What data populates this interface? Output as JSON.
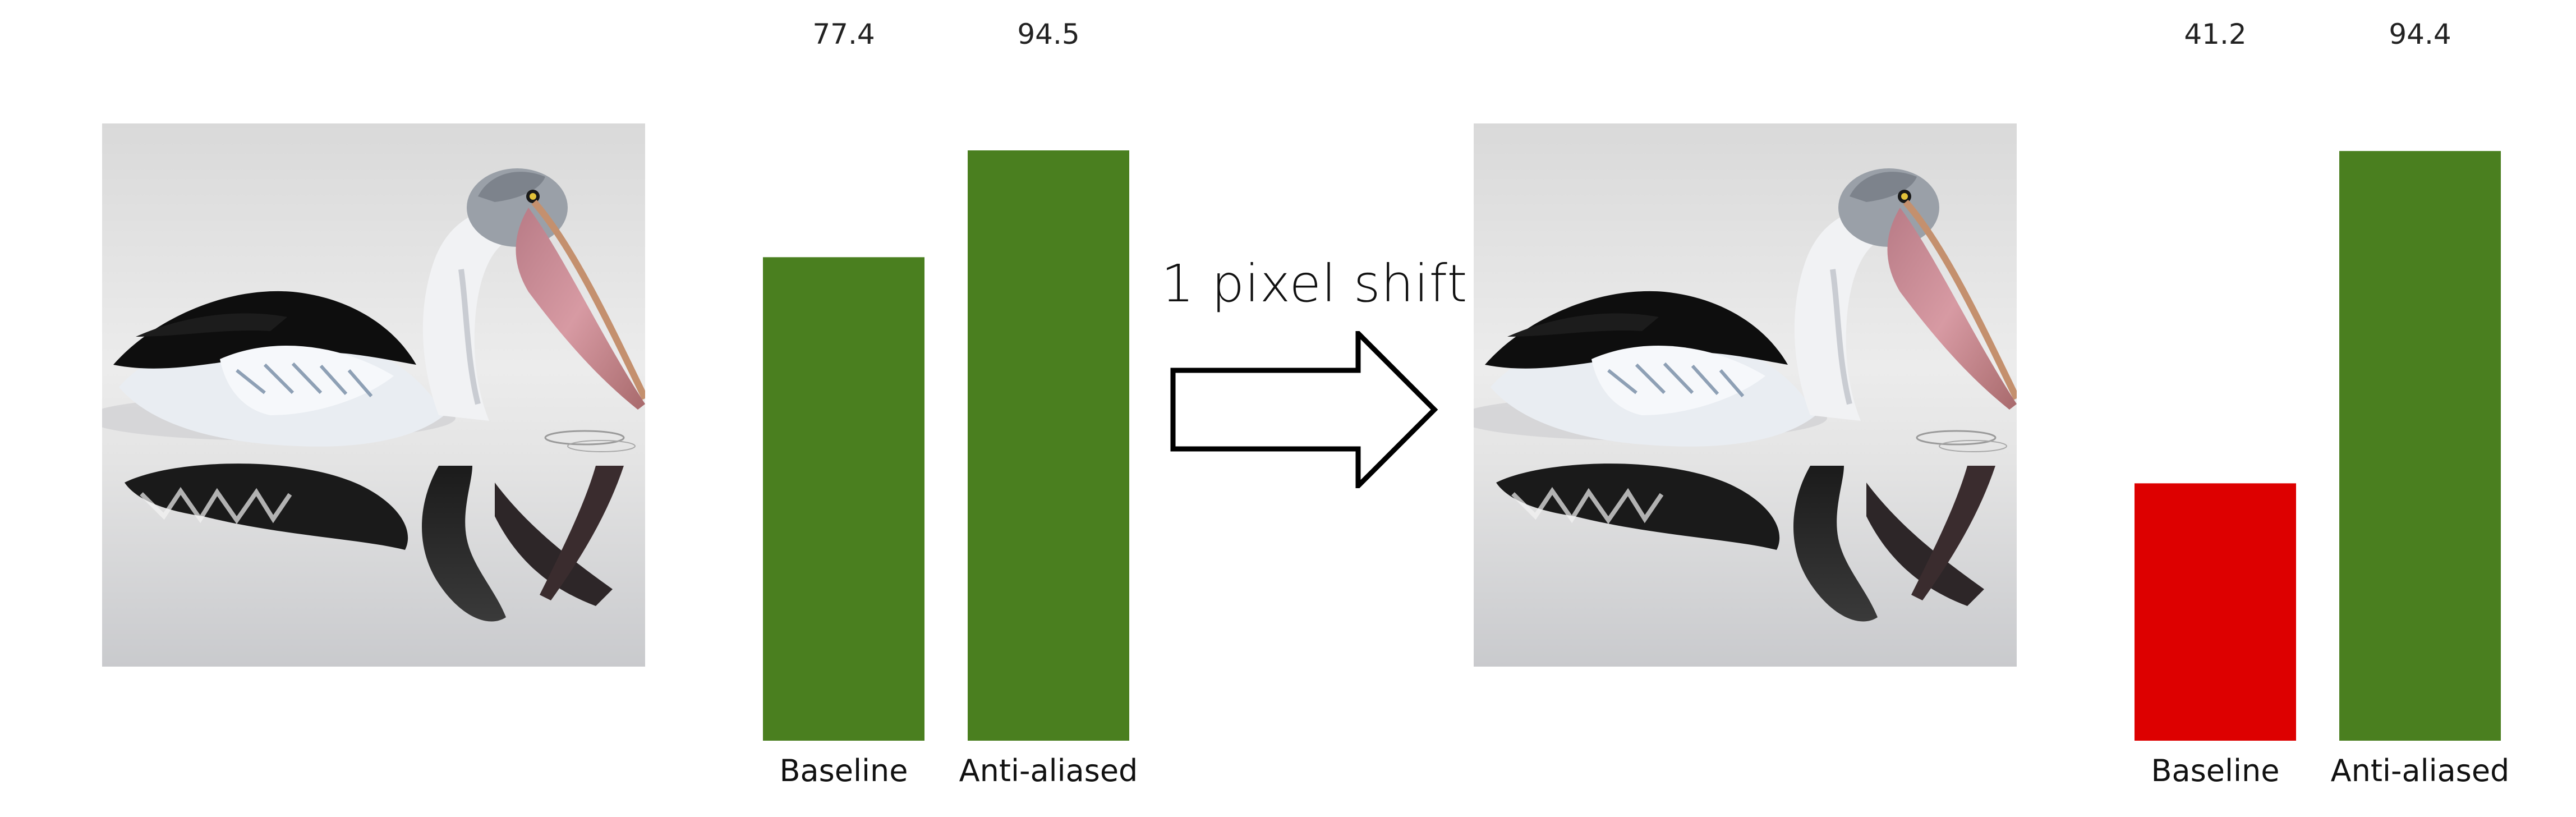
{
  "annotation": {
    "shift_label": "1 pixel shift"
  },
  "photos": [
    {
      "name": "pelican-original",
      "shift": 0
    },
    {
      "name": "pelican-shifted",
      "shift": 1
    }
  ],
  "colors": {
    "consistent": "#4a7f1f",
    "inconsistent": "#dd0000"
  },
  "chart_data": [
    {
      "type": "bar",
      "categories": [
        "Baseline",
        "Anti-aliased"
      ],
      "values": [
        77.4,
        94.5
      ],
      "value_labels": [
        "77.4",
        "94.5"
      ],
      "colors": [
        "#4a7f1f",
        "#4a7f1f"
      ],
      "ylim": [
        0,
        100
      ],
      "grid": false
    },
    {
      "type": "bar",
      "categories": [
        "Baseline",
        "Anti-aliased"
      ],
      "values": [
        41.2,
        94.4
      ],
      "value_labels": [
        "41.2",
        "94.4"
      ],
      "colors": [
        "#dd0000",
        "#4a7f1f"
      ],
      "ylim": [
        0,
        100
      ],
      "grid": false
    }
  ]
}
